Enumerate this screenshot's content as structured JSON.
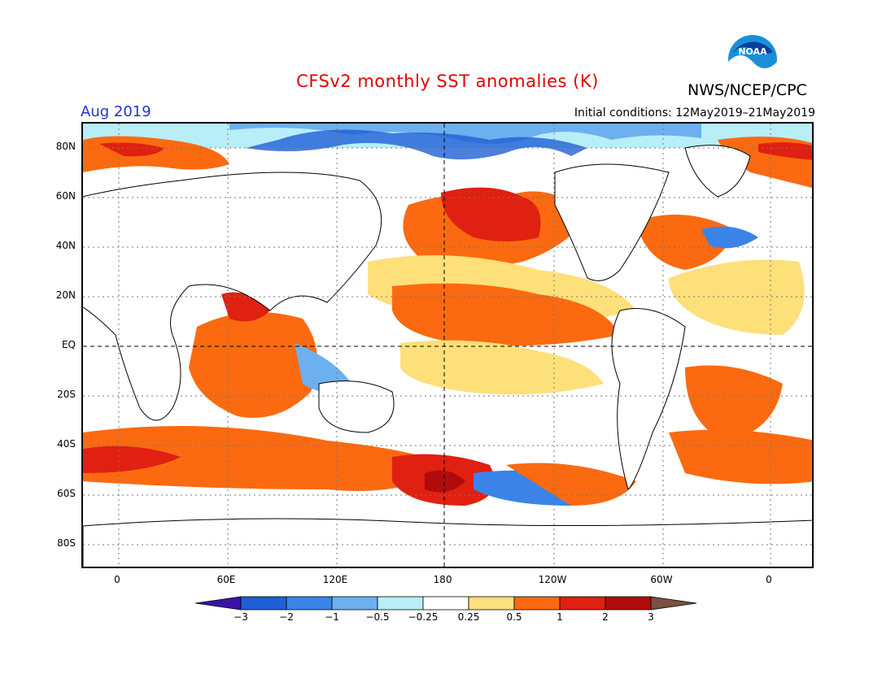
{
  "title": "CFSv2 monthly SST anomalies (K)",
  "agency": "NWS/NCEP/CPC",
  "logo_text": "NOAA",
  "valid_month": "Aug 2019",
  "initial_conditions": "Initial conditions: 12May2019–21May2019",
  "lat_labels": [
    "80N",
    "60N",
    "40N",
    "20N",
    "EQ",
    "20S",
    "40S",
    "60S",
    "80S"
  ],
  "lon_labels": [
    "0",
    "60E",
    "120E",
    "180",
    "120W",
    "60W",
    "0"
  ],
  "colorbar": {
    "labels": [
      "−3",
      "−2",
      "−1",
      "−0.5",
      "−0.25",
      "0.25",
      "0.5",
      "1",
      "2",
      "3"
    ],
    "colors": [
      "#3a12a8",
      "#1f5fd6",
      "#3a84e8",
      "#6cb0f0",
      "#b8eef8",
      "#ffffff",
      "#fde07a",
      "#fb6a10",
      "#e02010",
      "#b00c0c",
      "#7a5040"
    ]
  }
}
